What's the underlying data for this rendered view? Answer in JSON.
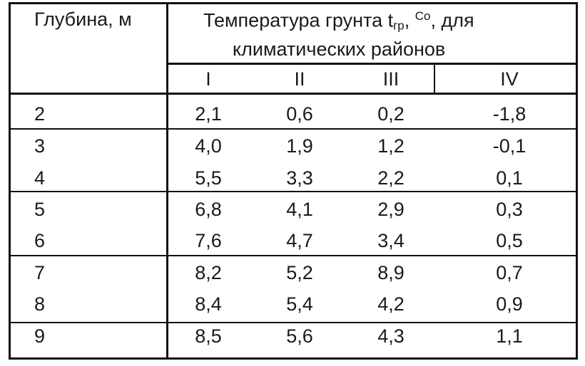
{
  "table": {
    "depth_header": "Глубина, м",
    "temp_header_line1_main": "Температура грунта t",
    "temp_header_subscript": "гр",
    "temp_header_comma": ",",
    "temp_header_superscript": "Со",
    "temp_header_tail": ", для",
    "temp_header_line2": "климатических районов",
    "districts": [
      "I",
      "II",
      "III",
      "IV"
    ],
    "rows": [
      {
        "depth": "2",
        "values": [
          "2,1",
          "0,6",
          "0,2",
          "-1,8"
        ]
      },
      {
        "depth": "3",
        "values": [
          "4,0",
          "1,9",
          "1,2",
          "-0,1"
        ]
      },
      {
        "depth": "4",
        "values": [
          "5,5",
          "3,3",
          "2,2",
          "0,1"
        ]
      },
      {
        "depth": "5",
        "values": [
          "6,8",
          "4,1",
          "2,9",
          "0,3"
        ]
      },
      {
        "depth": "6",
        "values": [
          "7,6",
          "4,7",
          "3,4",
          "0,5"
        ]
      },
      {
        "depth": "7",
        "values": [
          "8,2",
          "5,2",
          "8,9",
          "0,7"
        ]
      },
      {
        "depth": "8",
        "values": [
          "8,4",
          "5,4",
          "4,2",
          "0,9"
        ]
      },
      {
        "depth": "9",
        "values": [
          "8,5",
          "5,6",
          "4,3",
          "1,1"
        ]
      }
    ]
  }
}
